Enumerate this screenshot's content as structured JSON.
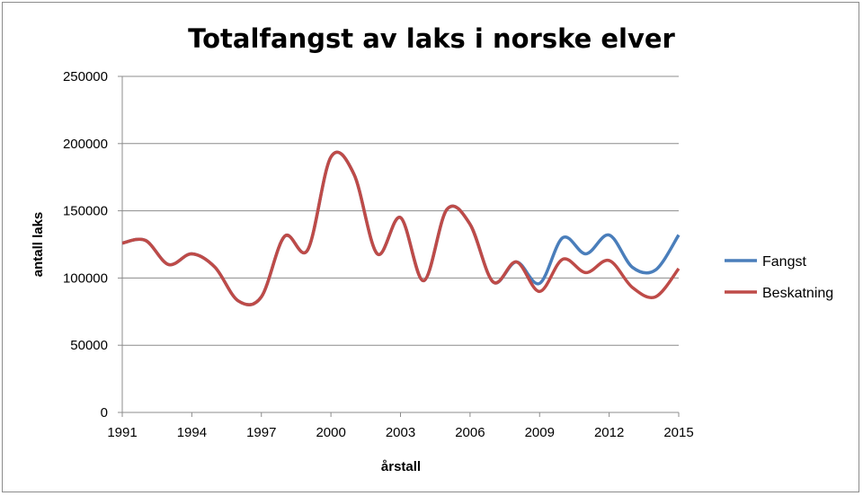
{
  "chart_data": {
    "type": "line",
    "title": "Totalfangst av laks i norske elver",
    "xlabel": "årstall",
    "ylabel": "antall laks",
    "ylim": [
      0,
      250000
    ],
    "yticks": [
      0,
      50000,
      100000,
      150000,
      200000,
      250000
    ],
    "xticks": [
      1991,
      1994,
      1997,
      2000,
      2003,
      2006,
      2009,
      2012,
      2015
    ],
    "grid": true,
    "smooth": true,
    "legend_position": "right",
    "x": [
      1991,
      1992,
      1993,
      1994,
      1995,
      1996,
      1997,
      1998,
      1999,
      2000,
      2001,
      2002,
      2003,
      2004,
      2005,
      2006,
      2007,
      2008,
      2009,
      2010,
      2011,
      2012,
      2013,
      2014,
      2015
    ],
    "series": [
      {
        "name": "Fangst",
        "color": "#4a7ebb",
        "values": [
          126000,
          128000,
          110000,
          118000,
          108000,
          83000,
          86000,
          131000,
          121000,
          190000,
          177000,
          118000,
          145000,
          98000,
          151000,
          140000,
          97000,
          112000,
          96000,
          130000,
          118000,
          132000,
          108000,
          106000,
          132000
        ]
      },
      {
        "name": "Beskatning",
        "color": "#be4b48",
        "values": [
          126000,
          128000,
          110000,
          118000,
          108000,
          83000,
          86000,
          131000,
          121000,
          190000,
          177000,
          118000,
          145000,
          98000,
          151000,
          140000,
          97000,
          112000,
          90000,
          114000,
          104000,
          113000,
          93000,
          86000,
          107000
        ]
      }
    ]
  }
}
